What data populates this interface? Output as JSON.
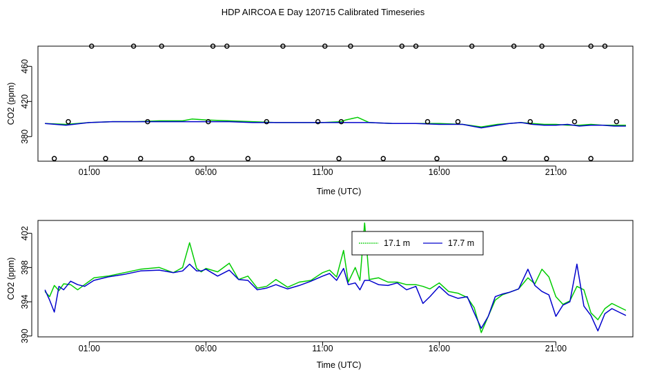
{
  "title": "HDP AIRCOA E  Day 120715  Calibrated Timeseries",
  "colors": {
    "green": "#00cc00",
    "blue": "#0000cc",
    "axis": "#000000"
  },
  "chart_data": [
    {
      "type": "line",
      "xlabel": "Time (UTC)",
      "ylabel": "CO2 (ppm)",
      "x_ticks": [
        "01:00",
        "06:00",
        "11:00",
        "16:00",
        "21:00"
      ],
      "x_tick_hours": [
        1,
        6,
        11,
        16,
        21
      ],
      "xlim": [
        -1.2,
        24.3
      ],
      "y_ticks": [
        380,
        420,
        460
      ],
      "y_tick_labels": [
        "380",
        "420",
        "460"
      ],
      "ylim": [
        352,
        483
      ],
      "legend": "none",
      "series": [
        {
          "color": "green",
          "x": [
            -0.9,
            0,
            1,
            2,
            3,
            4,
            5,
            5.4,
            6,
            7,
            8,
            9,
            10,
            11,
            11.8,
            12,
            12.5,
            13,
            14,
            15,
            16,
            17,
            17.8,
            18.5,
            19,
            19.5,
            20,
            20.5,
            21,
            21.5,
            22,
            22.5,
            23,
            23.5,
            24
          ],
          "y": [
            395,
            394,
            396,
            397,
            397,
            398,
            398,
            400,
            399,
            398,
            397,
            396,
            396,
            396,
            397,
            399,
            402,
            396,
            395,
            395,
            395,
            394,
            391,
            394,
            395,
            396,
            395,
            394,
            394,
            393,
            393,
            394,
            393,
            393,
            393
          ]
        },
        {
          "color": "blue",
          "x": [
            -0.9,
            0,
            1,
            2,
            3,
            4,
            5,
            6,
            7,
            8,
            9,
            10,
            11,
            12,
            13,
            14,
            15,
            16,
            17,
            17.8,
            18.5,
            19,
            19.5,
            20,
            20.5,
            21,
            21.5,
            22,
            22.5,
            23,
            23.5,
            24
          ],
          "y": [
            395,
            393,
            396,
            397,
            397,
            397,
            397,
            397,
            397,
            396,
            396,
            396,
            396,
            396,
            396,
            395,
            395,
            394,
            394,
            390,
            393,
            395,
            396,
            394,
            393,
            393,
            394,
            392,
            393,
            393,
            392,
            392
          ]
        }
      ],
      "markers": {
        "type": "scatter",
        "shape": "open-circle",
        "x": [
          1.1,
          2.9,
          4.1,
          6.3,
          6.9,
          9.3,
          11.1,
          12.2,
          14.4,
          15.0,
          17.4,
          19.2,
          20.4,
          22.5,
          23.1,
          -0.5,
          0.1,
          1.7,
          3.2,
          3.5,
          5.4,
          6.1,
          7.8,
          8.6,
          10.8,
          11.7,
          11.8,
          13.6,
          15.5,
          15.9,
          16.8,
          18.8,
          19.9,
          20.6,
          21.8,
          22.5,
          23.6
        ],
        "y": [
          483,
          483,
          483,
          483,
          483,
          483,
          483,
          483,
          483,
          483,
          483,
          483,
          483,
          483,
          483,
          355,
          397,
          355,
          355,
          397,
          355,
          397,
          355,
          397,
          397,
          355,
          397,
          355,
          397,
          355,
          397,
          355,
          397,
          355,
          397,
          355,
          397
        ]
      }
    },
    {
      "type": "line",
      "xlabel": "Time (UTC)",
      "ylabel": "CO2 (ppm)",
      "x_ticks": [
        "01:00",
        "06:00",
        "11:00",
        "16:00",
        "21:00"
      ],
      "x_tick_hours": [
        1,
        6,
        11,
        16,
        21
      ],
      "xlim": [
        -1.2,
        24.3
      ],
      "y_ticks": [
        390,
        394,
        398,
        402
      ],
      "y_tick_labels": [
        "390",
        "394",
        "398",
        "402"
      ],
      "ylim": [
        389.9,
        403.5
      ],
      "legend": "top-center",
      "series": [
        {
          "name": "17.1 m",
          "color": "green",
          "x": [
            -0.9,
            -0.7,
            -0.5,
            -0.3,
            -0.1,
            0.2,
            0.5,
            0.8,
            1.2,
            1.8,
            2.5,
            3.2,
            4.0,
            4.6,
            5.0,
            5.3,
            5.6,
            5.8,
            6.0,
            6.5,
            7.0,
            7.4,
            7.8,
            8.2,
            8.6,
            9.0,
            9.5,
            10.0,
            10.5,
            11.0,
            11.3,
            11.6,
            11.9,
            12.1,
            12.4,
            12.6,
            12.8,
            13.0,
            13.4,
            13.8,
            14.2,
            14.6,
            15.0,
            15.3,
            15.6,
            16.0,
            16.4,
            16.8,
            17.2,
            17.5,
            17.8,
            18.1,
            18.4,
            18.7,
            19.0,
            19.4,
            19.8,
            20.1,
            20.4,
            20.7,
            21.0,
            21.3,
            21.6,
            21.9,
            22.2,
            22.5,
            22.8,
            23.1,
            23.4,
            23.7,
            24.0
          ],
          "y": [
            395.2,
            394.6,
            395.9,
            395.3,
            396.1,
            396.0,
            395.4,
            396.0,
            396.8,
            397.0,
            397.4,
            397.8,
            398.0,
            397.4,
            398.0,
            400.9,
            397.9,
            397.5,
            397.9,
            397.5,
            398.5,
            396.6,
            397.0,
            395.6,
            395.8,
            396.6,
            395.7,
            396.3,
            396.5,
            397.4,
            397.7,
            396.9,
            400.0,
            396.3,
            398.0,
            396.5,
            403.2,
            396.6,
            396.8,
            396.3,
            396.3,
            396.0,
            396.0,
            395.8,
            395.5,
            396.2,
            395.2,
            395.0,
            394.5,
            393.3,
            390.4,
            392.3,
            394.2,
            394.8,
            395.1,
            395.5,
            396.8,
            396.1,
            397.8,
            396.9,
            394.6,
            393.7,
            394.1,
            395.8,
            395.4,
            392.7,
            391.9,
            393.2,
            393.8,
            393.4,
            393.0
          ]
        },
        {
          "name": "17.7 m",
          "color": "blue",
          "x": [
            -0.9,
            -0.7,
            -0.5,
            -0.3,
            -0.1,
            0.2,
            0.5,
            0.8,
            1.2,
            1.8,
            2.5,
            3.2,
            4.0,
            4.6,
            5.0,
            5.3,
            5.6,
            5.8,
            6.0,
            6.5,
            7.0,
            7.4,
            7.8,
            8.2,
            8.6,
            9.0,
            9.5,
            10.0,
            10.5,
            11.0,
            11.3,
            11.6,
            11.9,
            12.1,
            12.4,
            12.6,
            12.8,
            13.0,
            13.4,
            13.8,
            14.2,
            14.6,
            15.0,
            15.3,
            15.6,
            16.0,
            16.4,
            16.8,
            17.2,
            17.5,
            17.8,
            18.1,
            18.4,
            18.7,
            19.0,
            19.4,
            19.8,
            20.1,
            20.4,
            20.7,
            21.0,
            21.3,
            21.6,
            21.9,
            22.2,
            22.5,
            22.8,
            23.1,
            23.4,
            23.7,
            24.0
          ],
          "y": [
            395.4,
            394.2,
            392.8,
            395.8,
            395.4,
            396.4,
            396.0,
            395.8,
            396.5,
            396.9,
            397.2,
            397.6,
            397.7,
            397.4,
            397.6,
            398.4,
            397.6,
            397.6,
            397.8,
            397.0,
            397.7,
            396.6,
            396.5,
            395.4,
            395.6,
            396.0,
            395.5,
            395.9,
            396.4,
            397.0,
            397.3,
            396.5,
            397.9,
            396.0,
            396.2,
            395.4,
            396.5,
            396.5,
            396.0,
            395.9,
            396.2,
            395.4,
            395.8,
            393.8,
            394.6,
            395.8,
            394.8,
            394.4,
            394.6,
            392.7,
            390.9,
            392.3,
            394.6,
            394.9,
            395.1,
            395.5,
            397.8,
            395.9,
            395.2,
            394.8,
            392.3,
            393.6,
            394.0,
            398.4,
            393.5,
            392.4,
            390.6,
            392.6,
            393.2,
            392.8,
            392.4
          ]
        }
      ]
    }
  ]
}
